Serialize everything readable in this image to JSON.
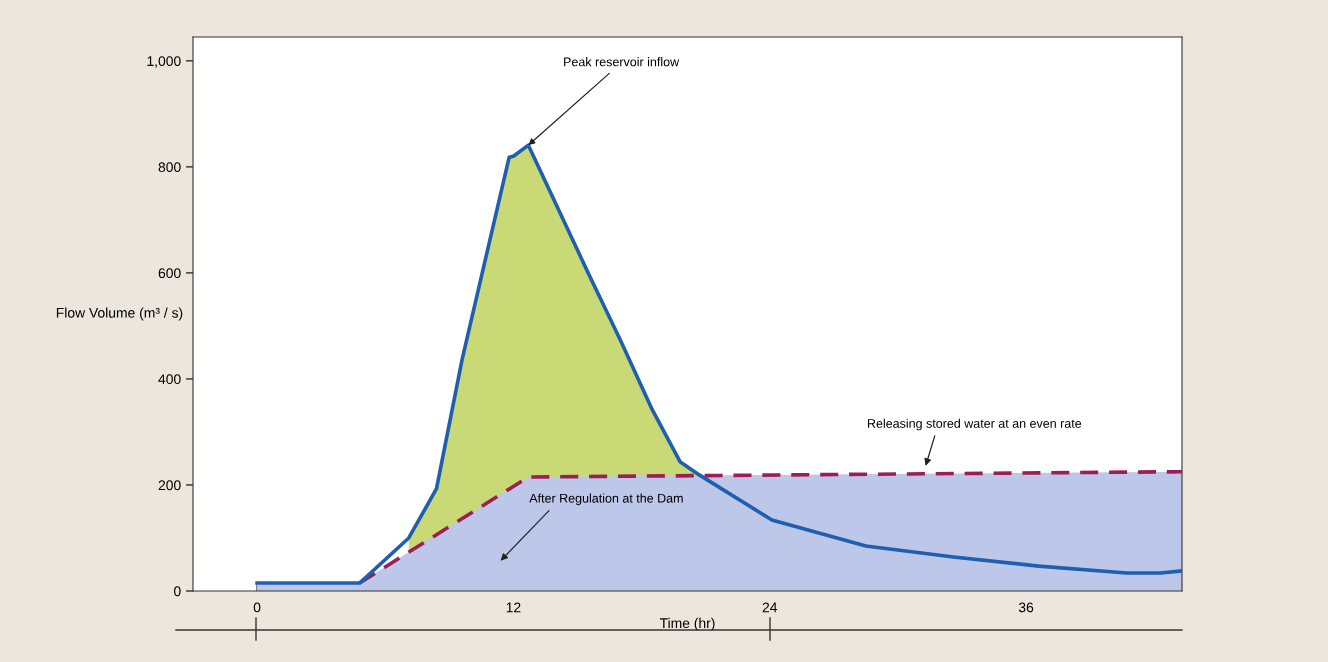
{
  "chart_data": {
    "type": "area",
    "xlabel": "Time (hr)",
    "ylabel": "Flow Volume (m³ / s)",
    "xlim": [
      -3,
      43.3
    ],
    "ylim": [
      0,
      1045
    ],
    "xticks": [
      0,
      12,
      24,
      36
    ],
    "yticks": [
      0,
      200,
      400,
      600,
      800,
      {
        "value": 1000,
        "label": "1,000"
      }
    ],
    "grid": false,
    "legend": false,
    "series": [
      {
        "color": "#c9d975",
        "x": [
          7.1,
          8.4,
          9.6,
          11.8,
          12.0,
          12.7,
          15.5,
          17.0,
          18.5,
          19.8,
          20.7
        ],
        "values": [
          100,
          193,
          437,
          818,
          820,
          841,
          600,
          474,
          342,
          244,
          219
        ]
      },
      {
        "color": "#bcc7ea",
        "x": [
          0,
          4.8,
          12.7,
          43.3
        ],
        "values": [
          15,
          15,
          215,
          225
        ]
      },
      {
        "type": "line",
        "color": "#1f5fb0",
        "line_style": "solid",
        "x": [
          0,
          4.8,
          7.1,
          8.4,
          9.6,
          11.8,
          12.0,
          12.7,
          15.5,
          17.0,
          18.5,
          19.8,
          20.7,
          24.1,
          28.5,
          32.6,
          36.6,
          40.7,
          42.3,
          43.3
        ],
        "values": [
          15,
          15,
          100,
          193,
          437,
          818,
          820,
          841,
          600,
          474,
          342,
          244,
          219,
          134,
          85,
          64,
          47,
          34,
          34,
          38
        ]
      },
      {
        "type": "line",
        "color": "#9b1e57",
        "line_style": "dashed",
        "x": [
          4.8,
          12.7,
          43.3
        ],
        "values": [
          15,
          215,
          225
        ]
      }
    ],
    "annotations": [
      {
        "text": "Peak reservoir inflow",
        "x": 12.7,
        "y": 841
      },
      "Releasing stored water at an even rate",
      "After Regulation at the Dam"
    ]
  }
}
